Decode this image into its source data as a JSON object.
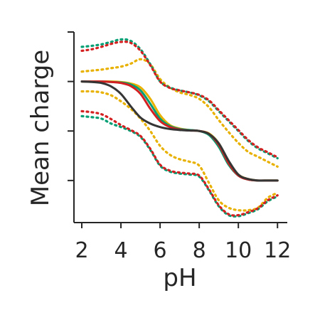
{
  "chart_data": {
    "type": "line",
    "title": "",
    "xlabel": "pH",
    "ylabel": "Mean charge",
    "xlim": [
      1.6,
      12.5
    ],
    "ylim": [
      -2.85,
      1.0
    ],
    "xticks": [
      2,
      4,
      6,
      8,
      10,
      12
    ],
    "xtick_labels": [
      "2",
      "4",
      "6",
      "8",
      "10",
      "12"
    ],
    "yticks": [
      -2,
      -1,
      0,
      1
    ],
    "grid": false,
    "legend": "none",
    "x": [
      2,
      2.5,
      3,
      3.5,
      4,
      4.5,
      5,
      5.5,
      6,
      6.5,
      7,
      7.5,
      8,
      8.5,
      9,
      9.5,
      10,
      10.5,
      11,
      11.5,
      12
    ],
    "series": [
      {
        "color": "#e8b100",
        "values": [
          0.0,
          0.0,
          0.0,
          0.0,
          -0.01,
          -0.04,
          -0.12,
          -0.35,
          -0.68,
          -0.88,
          -0.95,
          -0.98,
          -1.0,
          -1.05,
          -1.25,
          -1.62,
          -1.88,
          -1.97,
          -2.0,
          -2.0,
          -2.0
        ],
        "upper": [
          0.2,
          0.22,
          0.24,
          0.27,
          0.3,
          0.36,
          0.45,
          0.35,
          0.05,
          -0.12,
          -0.22,
          -0.27,
          -0.35,
          -0.52,
          -0.78,
          -1.02,
          -1.24,
          -1.42,
          -1.52,
          -1.62,
          -1.72
        ],
        "lower": [
          -0.2,
          -0.2,
          -0.22,
          -0.28,
          -0.4,
          -0.55,
          -0.75,
          -1.0,
          -1.3,
          -1.48,
          -1.57,
          -1.62,
          -1.7,
          -2.05,
          -2.4,
          -2.55,
          -2.6,
          -2.6,
          -2.55,
          -2.35,
          -2.25
        ]
      },
      {
        "color": "#009e73",
        "values": [
          0.0,
          0.0,
          0.0,
          -0.01,
          -0.02,
          -0.06,
          -0.18,
          -0.45,
          -0.75,
          -0.9,
          -0.96,
          -0.98,
          -1.0,
          -1.08,
          -1.32,
          -1.68,
          -1.9,
          -1.98,
          -2.0,
          -2.0,
          -2.0
        ],
        "upper": [
          0.7,
          0.72,
          0.75,
          0.8,
          0.85,
          0.82,
          0.65,
          0.35,
          0.0,
          -0.12,
          -0.18,
          -0.22,
          -0.28,
          -0.4,
          -0.6,
          -0.8,
          -1.0,
          -1.2,
          -1.35,
          -1.45,
          -1.55
        ],
        "lower": [
          -0.7,
          -0.72,
          -0.75,
          -0.85,
          -0.92,
          -1.0,
          -1.12,
          -1.38,
          -1.7,
          -1.82,
          -1.86,
          -1.88,
          -1.92,
          -2.2,
          -2.52,
          -2.7,
          -2.72,
          -2.66,
          -2.58,
          -2.42,
          -2.32
        ]
      },
      {
        "color": "#d42020",
        "values": [
          0.0,
          0.0,
          0.0,
          -0.01,
          -0.03,
          -0.09,
          -0.25,
          -0.55,
          -0.8,
          -0.92,
          -0.97,
          -0.99,
          -1.0,
          -1.06,
          -1.28,
          -1.65,
          -1.9,
          -1.98,
          -2.0,
          -2.0,
          -2.0
        ],
        "upper": [
          0.62,
          0.65,
          0.7,
          0.76,
          0.8,
          0.78,
          0.62,
          0.33,
          0.0,
          -0.13,
          -0.18,
          -0.22,
          -0.27,
          -0.38,
          -0.58,
          -0.78,
          -0.98,
          -1.18,
          -1.33,
          -1.43,
          -1.53
        ],
        "lower": [
          -0.6,
          -0.62,
          -0.66,
          -0.76,
          -0.88,
          -0.98,
          -1.1,
          -1.36,
          -1.68,
          -1.8,
          -1.84,
          -1.86,
          -1.9,
          -2.18,
          -2.5,
          -2.68,
          -2.7,
          -2.64,
          -2.56,
          -2.4,
          -2.3
        ]
      },
      {
        "color": "#353535",
        "values": [
          0.0,
          -0.01,
          -0.03,
          -0.1,
          -0.25,
          -0.5,
          -0.73,
          -0.85,
          -0.92,
          -0.96,
          -0.98,
          -0.99,
          -1.0,
          -1.06,
          -1.25,
          -1.6,
          -1.88,
          -1.97,
          -2.0,
          -2.0,
          -2.0
        ]
      }
    ]
  }
}
